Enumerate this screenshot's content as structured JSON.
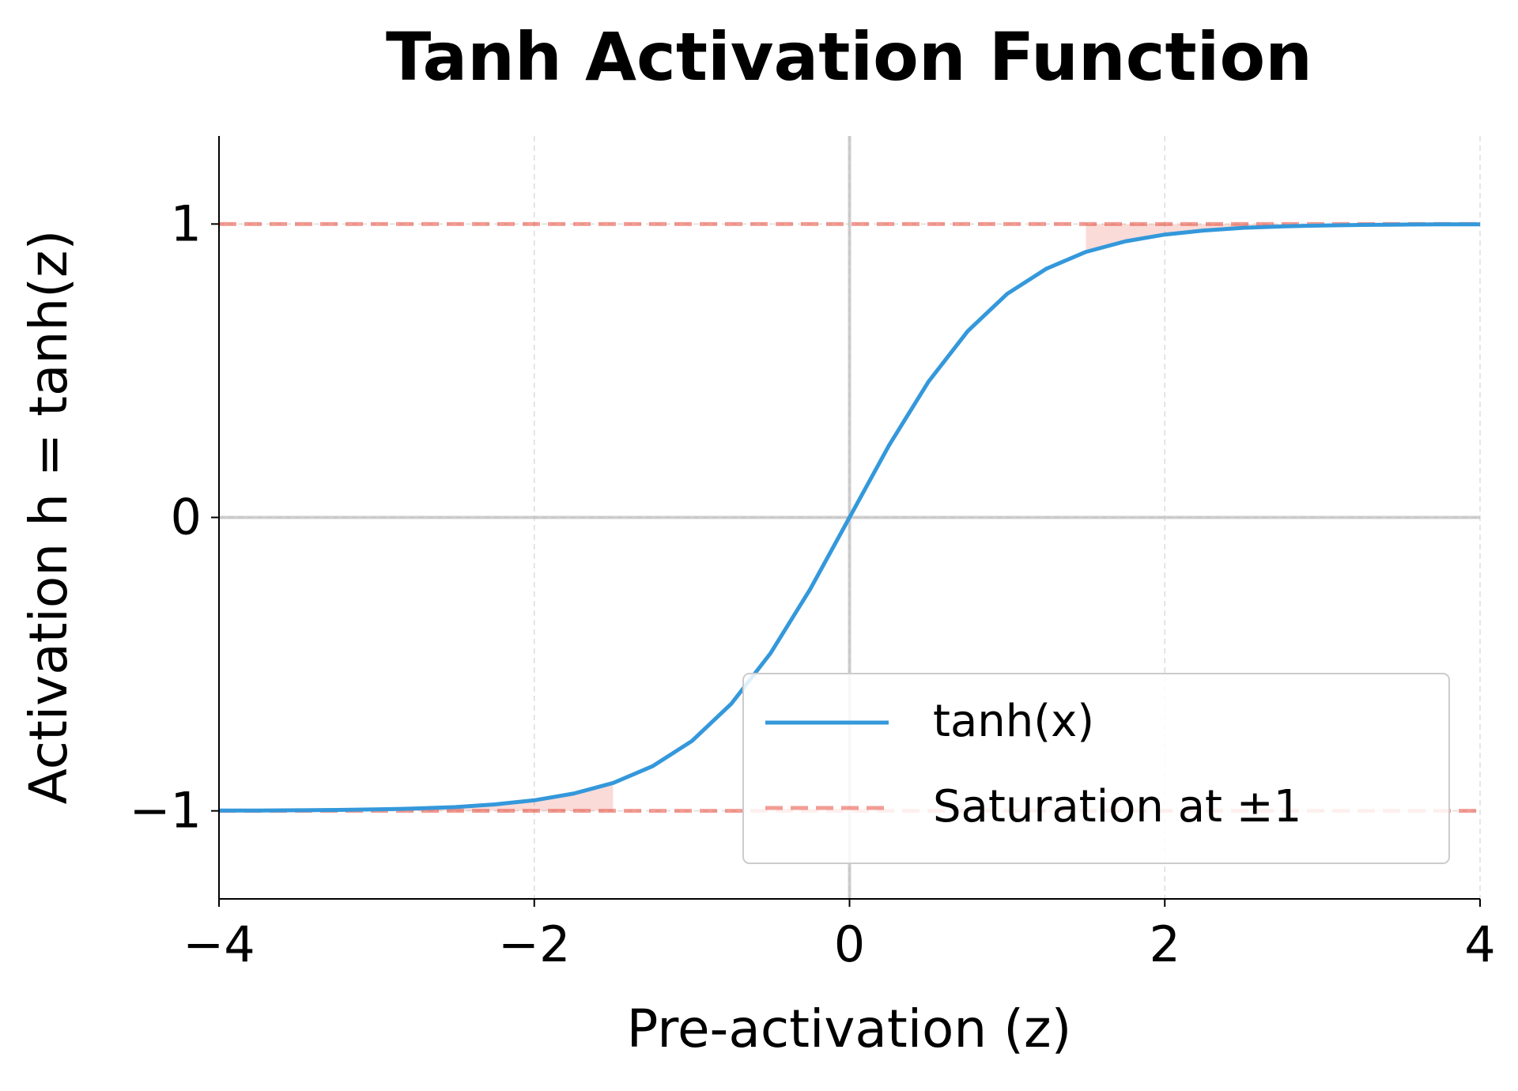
{
  "chart_data": {
    "type": "line",
    "title": "Tanh Activation Function",
    "xlabel": "Pre-activation (z)",
    "ylabel": "Activation h = tanh(z)",
    "x": [
      -4,
      -3.75,
      -3.5,
      -3.25,
      -3,
      -2.75,
      -2.5,
      -2.25,
      -2,
      -1.75,
      -1.5,
      -1.25,
      -1,
      -0.75,
      -0.5,
      -0.25,
      0,
      0.25,
      0.5,
      0.75,
      1,
      1.25,
      1.5,
      1.75,
      2,
      2.25,
      2.5,
      2.75,
      3,
      3.25,
      3.5,
      3.75,
      4
    ],
    "series": [
      {
        "name": "tanh(x)",
        "color": "#3498db",
        "values": [
          -0.999,
          -0.999,
          -0.998,
          -0.997,
          -0.995,
          -0.992,
          -0.987,
          -0.978,
          -0.964,
          -0.941,
          -0.905,
          -0.848,
          -0.762,
          -0.635,
          -0.462,
          -0.245,
          0,
          0.245,
          0.462,
          0.635,
          0.762,
          0.848,
          0.905,
          0.941,
          0.964,
          0.978,
          0.987,
          0.992,
          0.995,
          0.997,
          0.998,
          0.999,
          0.999
        ]
      }
    ],
    "reference_lines": {
      "name": "Saturation at ±1",
      "color": "#e74c3c",
      "values": [
        1,
        -1
      ]
    },
    "shaded_regions": [
      [
        1.5,
        4
      ],
      [
        -4,
        -1.5
      ]
    ],
    "xlim": [
      -4,
      4
    ],
    "ylim": [
      -1.3,
      1.3
    ],
    "xticks": [
      {
        "value": -4,
        "label": "−4"
      },
      {
        "value": -2,
        "label": "−2"
      },
      0,
      2,
      4
    ],
    "yticks": [
      {
        "value": -1,
        "label": "−1"
      },
      0,
      1
    ],
    "grid": true,
    "zero_lines": true,
    "legend": "lower right"
  }
}
